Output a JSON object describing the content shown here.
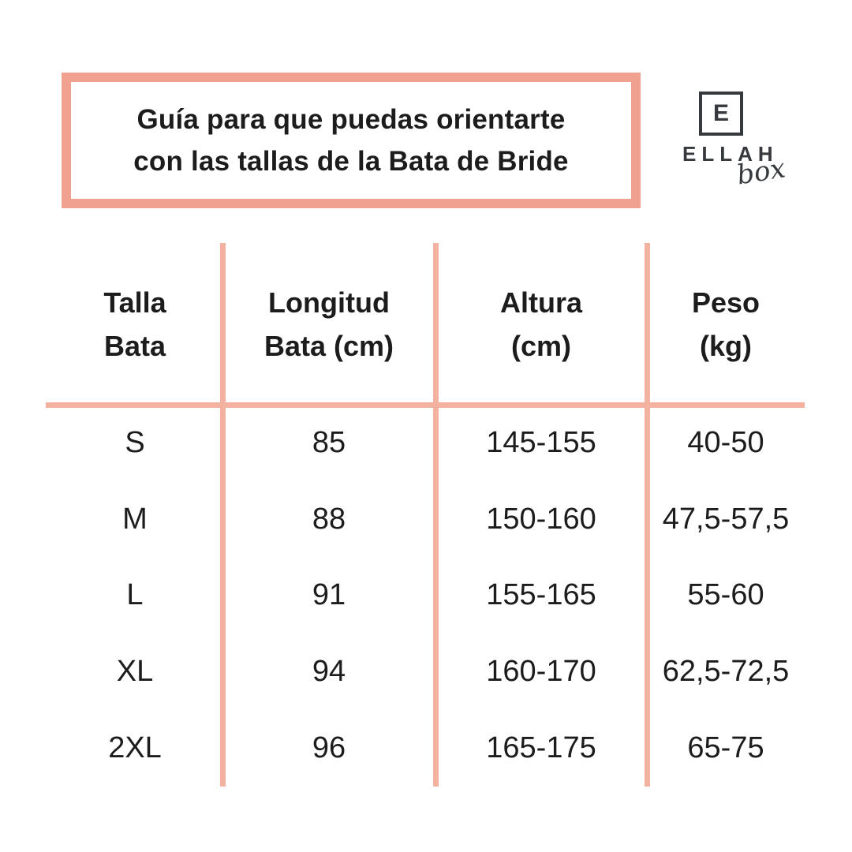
{
  "colors": {
    "title_border": "#f0a28e",
    "table_lines": "#f3b2a0",
    "text": "#1c1c1c",
    "logo": "#36393e",
    "background": "#ffffff"
  },
  "title_box": {
    "line1": "Guía para que puedas orientarte",
    "line2": "con las tallas de la Bata de Bride"
  },
  "logo": {
    "monogram": "E",
    "name": "ELLAH",
    "sub": "box"
  },
  "table": {
    "columns": [
      {
        "label_line1": "Talla",
        "label_line2": "Bata"
      },
      {
        "label_line1": "Longitud",
        "label_line2": "Bata (cm)"
      },
      {
        "label_line1": "Altura",
        "label_line2": "(cm)"
      },
      {
        "label_line1": "Peso",
        "label_line2": "(kg)"
      }
    ],
    "rows": [
      {
        "talla": "S",
        "longitud": "85",
        "altura": "145-155",
        "peso": "40-50"
      },
      {
        "talla": "M",
        "longitud": "88",
        "altura": "150-160",
        "peso": "47,5-57,5"
      },
      {
        "talla": "L",
        "longitud": "91",
        "altura": "155-165",
        "peso": "55-60"
      },
      {
        "talla": "XL",
        "longitud": "94",
        "altura": "160-170",
        "peso": "62,5-72,5"
      },
      {
        "talla": "2XL",
        "longitud": "96",
        "altura": "165-175",
        "peso": "65-75"
      }
    ]
  }
}
